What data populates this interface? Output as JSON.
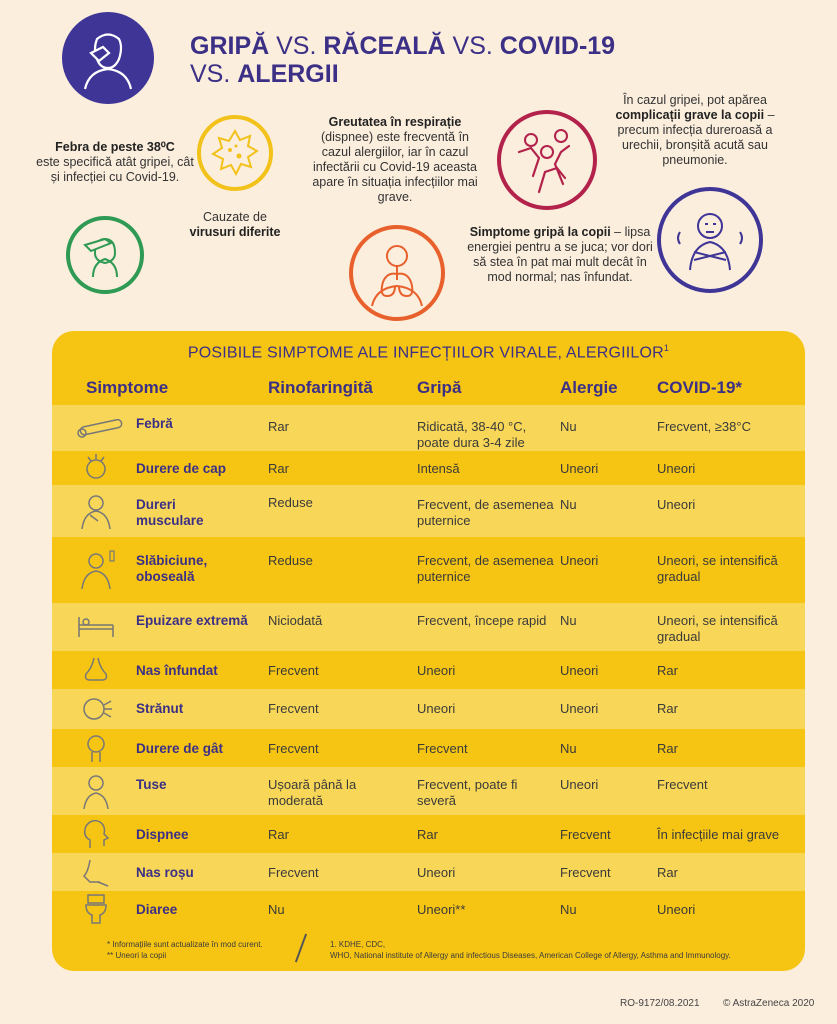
{
  "title": {
    "line1_a": "GRIPĂ",
    "vs1": " VS. ",
    "line1_b": "RĂCEALĂ",
    "vs2": " VS. ",
    "line1_c": "COVID-19",
    "vs3": "VS. ",
    "line2": "ALERGII"
  },
  "callouts": {
    "fever_bold": "Febra de peste 38⁰C",
    "fever_text": "este specifică atât gripei, cât și infecției cu Covid-19.",
    "virus_text": "Cauzate de",
    "virus_bold": "virusuri diferite",
    "breath_bold": "Greutatea în respirație",
    "breath_text": "(dispnee) este frecventă în cazul alergiilor, iar în cazul infectării cu Covid-19 aceasta apare în situația infecțiilor mai grave.",
    "complic_pre": "În cazul gripei, pot apărea",
    "complic_bold": "complicații grave la copii",
    "complic_post": "– precum infecția dureroasă a urechii, bronșită acută sau pneumonie.",
    "kids_bold": "Simptome gripă la copii",
    "kids_text": "– lipsa energiei pentru a se juca; vor dori să stea în pat mai mult decât în mod normal; nas înfundat."
  },
  "table": {
    "title": "POSIBILE SIMPTOME ALE INFECȚIILOR VIRALE, ALERGIILOR",
    "title_sup": "1",
    "headers": [
      "Simptome",
      "Rinofaringită",
      "Gripă",
      "Alergie",
      "COVID-19*"
    ],
    "rows": [
      {
        "symptom": "Febră",
        "icon": "thermometer-icon",
        "c1": "Rar",
        "c2": "Ridicată, 38-40 °C, poate dura 3-4 zile",
        "c3": "Nu",
        "c4": "Frecvent, ≥38°C"
      },
      {
        "symptom": "Durere de cap",
        "icon": "headache-icon",
        "c1": "Rar",
        "c2": "Intensă",
        "c3": "Uneori",
        "c4": "Uneori"
      },
      {
        "symptom": "Dureri musculare",
        "icon": "muscle-pain-icon",
        "c1": "Reduse",
        "c2": "Frecvent, de asemenea puternice",
        "c3": "Nu",
        "c4": "Uneori"
      },
      {
        "symptom": "Slăbiciune, oboseală",
        "icon": "fatigue-icon",
        "c1": "Reduse",
        "c2": "Frecvent, de asemenea puternice",
        "c3": "Uneori",
        "c4": "Uneori, se intensifică gradual"
      },
      {
        "symptom": "Epuizare extremă",
        "icon": "bed-icon",
        "c1": "Niciodată",
        "c2": "Frecvent, începe rapid",
        "c3": "Nu",
        "c4": "Uneori, se intensifică gradual"
      },
      {
        "symptom": "Nas înfundat",
        "icon": "nose-icon",
        "c1": "Frecvent",
        "c2": "Uneori",
        "c3": "Uneori",
        "c4": "Rar"
      },
      {
        "symptom": "Strănut",
        "icon": "sneeze-icon",
        "c1": "Frecvent",
        "c2": "Uneori",
        "c3": "Uneori",
        "c4": "Rar"
      },
      {
        "symptom": "Durere de gât",
        "icon": "sore-throat-icon",
        "c1": "Frecvent",
        "c2": "Frecvent",
        "c3": "Nu",
        "c4": "Rar"
      },
      {
        "symptom": "Tuse",
        "icon": "cough-icon",
        "c1": "Ușoară până la moderată",
        "c2": "Frecvent, poate fi severă",
        "c3": "Uneori",
        "c4": "Frecvent"
      },
      {
        "symptom": "Dispnee",
        "icon": "breathing-icon",
        "c1": "Rar",
        "c2": "Rar",
        "c3": "Frecvent",
        "c4": "În infecțiile mai grave"
      },
      {
        "symptom": "Nas roșu",
        "icon": "red-nose-icon",
        "c1": "Frecvent",
        "c2": "Uneori",
        "c3": "Frecvent",
        "c4": "Rar"
      },
      {
        "symptom": "Diaree",
        "icon": "toilet-icon",
        "c1": "Nu",
        "c2": "Uneori**",
        "c3": "Nu",
        "c4": "Uneori"
      }
    ],
    "footnote_left_1": "* Informațiile sunt actualizate în mod curent.",
    "footnote_left_2": "** Uneori la copii",
    "footnote_right_1": "1. KDHE, CDC,",
    "footnote_right_2": "WHO, National institute of Allergy and infectious Diseases, American College of Allergy, Asthma and Immunology."
  },
  "footer": {
    "code": "RO-9172/08.2021",
    "copyright": "© AstraZeneca 2020"
  },
  "colors": {
    "background": "#fbeedd",
    "panel": "#f6c514",
    "panel_row_light": "#f8d657",
    "navy": "#3b2f86",
    "green": "#2e9a54",
    "yellow": "#f3c21a",
    "orange": "#e8602c",
    "magenta": "#b2224a",
    "purple": "#3f3597"
  }
}
